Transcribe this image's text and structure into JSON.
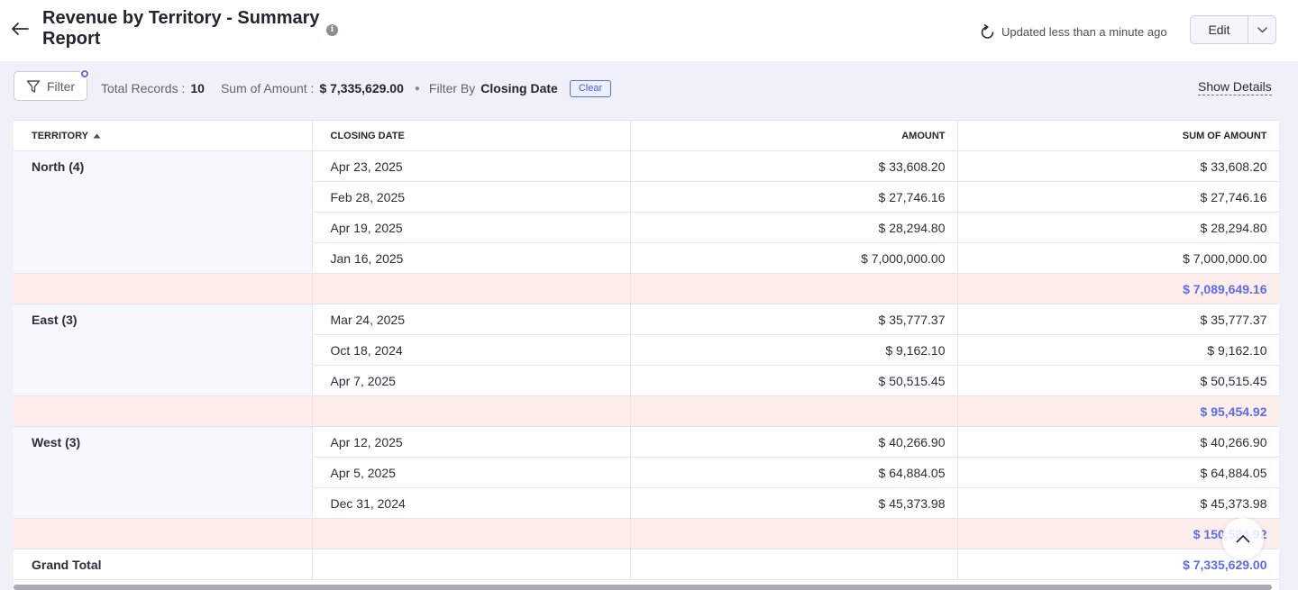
{
  "header": {
    "title": "Revenue by Territory - Summary Report",
    "updated_text": "Updated less than a minute ago",
    "edit_label": "Edit"
  },
  "toolbar": {
    "filter_label": "Filter",
    "total_records_label": "Total Records :",
    "total_records_value": "10",
    "sum_label": "Sum of Amount :",
    "sum_value": "$ 7,335,629.00",
    "filter_by_label": "Filter By",
    "filter_by_value": "Closing Date",
    "clear_label": "Clear",
    "show_details_label": "Show Details"
  },
  "table": {
    "columns": [
      "TERRITORY",
      "CLOSING DATE",
      "AMOUNT",
      "SUM OF AMOUNT"
    ],
    "groups": [
      {
        "label": "North (4)",
        "rows": [
          {
            "date": "Apr 23, 2025",
            "amount": "$ 33,608.20",
            "sum": "$ 33,608.20"
          },
          {
            "date": "Feb 28, 2025",
            "amount": "$ 27,746.16",
            "sum": "$ 27,746.16"
          },
          {
            "date": "Apr 19, 2025",
            "amount": "$ 28,294.80",
            "sum": "$ 28,294.80"
          },
          {
            "date": "Jan 16, 2025",
            "amount": "$ 7,000,000.00",
            "sum": "$ 7,000,000.00"
          }
        ],
        "subtotal": "$ 7,089,649.16"
      },
      {
        "label": "East (3)",
        "rows": [
          {
            "date": "Mar 24, 2025",
            "amount": "$ 35,777.37",
            "sum": "$ 35,777.37"
          },
          {
            "date": "Oct 18, 2024",
            "amount": "$ 9,162.10",
            "sum": "$ 9,162.10"
          },
          {
            "date": "Apr 7, 2025",
            "amount": "$ 50,515.45",
            "sum": "$ 50,515.45"
          }
        ],
        "subtotal": "$ 95,454.92"
      },
      {
        "label": "West (3)",
        "rows": [
          {
            "date": "Apr 12, 2025",
            "amount": "$ 40,266.90",
            "sum": "$ 40,266.90"
          },
          {
            "date": "Apr 5, 2025",
            "amount": "$ 64,884.05",
            "sum": "$ 64,884.05"
          },
          {
            "date": "Dec 31, 2024",
            "amount": "$ 45,373.98",
            "sum": "$ 45,373.98"
          }
        ],
        "subtotal": "$ 150,524.92"
      }
    ],
    "grand_total_label": "Grand Total",
    "grand_total_value": "$ 7,335,629.00"
  },
  "icons": {
    "back": "arrow-left-icon",
    "info": "info-icon",
    "refresh": "refresh-icon",
    "filter": "funnel-icon",
    "sort": "sort-ascending-icon",
    "scroll_top": "chevron-up-icon"
  },
  "colors": {
    "accent": "#5b6cf0",
    "subtotal_bg": "#fdeeeb",
    "page_bg": "#f0f1f8"
  }
}
